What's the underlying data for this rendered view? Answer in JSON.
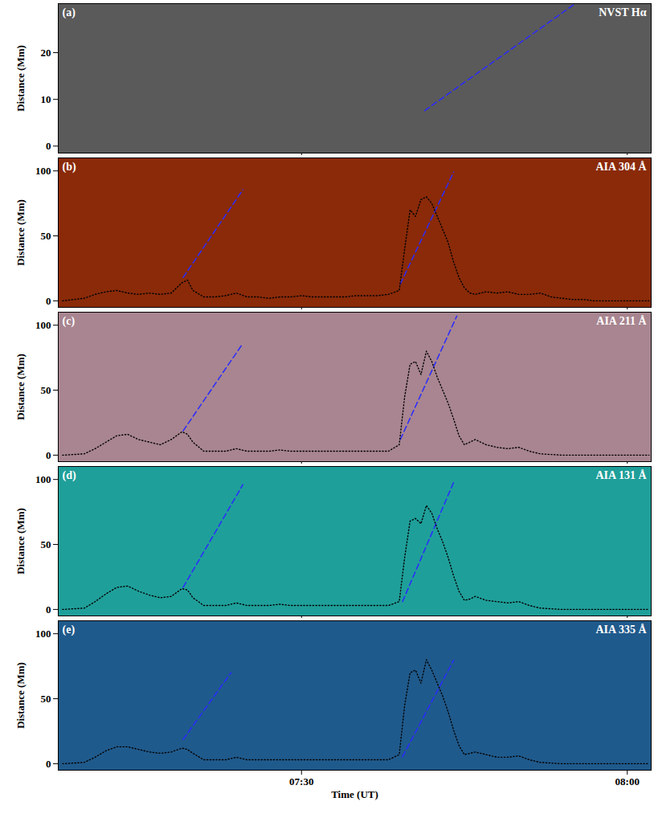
{
  "chart_data": [
    {
      "type": "line",
      "label": "(a)",
      "title": "NVST Hα",
      "color": "#5a5a5a",
      "xlim": [
        7.6,
        62.2
      ],
      "xticks": [
        {
          "value": 30,
          "label": "07:30"
        },
        {
          "value": 60,
          "label": "08:00"
        }
      ],
      "ylim": [
        -1.5,
        30.5
      ],
      "yticks": [
        0,
        10,
        20
      ],
      "ylabel": "Distance (Mm)",
      "tick_labels": "y",
      "series": [
        {
          "color": "#2a2aff",
          "line_style": "dashed",
          "x": [
            41.35,
            55.2
          ],
          "values": [
            7.6,
            30.5
          ]
        }
      ]
    },
    {
      "type": "line",
      "label": "(b)",
      "title": "AIA 304 Å",
      "color": "#8a2a08",
      "xlim": [
        7.6,
        62.2
      ],
      "xticks": [
        {
          "value": 30,
          "label": "07:30"
        },
        {
          "value": 60,
          "label": "08:00"
        }
      ],
      "ylim": [
        -5,
        110
      ],
      "yticks": [
        0,
        50,
        100
      ],
      "ylabel": "Distance (Mm)",
      "tick_labels": "y",
      "series": [
        {
          "color": "#2a2aff",
          "line_style": "dashed",
          "x": [
            19.1,
            24.6
          ],
          "values": [
            18,
            85.5
          ]
        },
        {
          "color": "#2a2aff",
          "line_style": "dashed",
          "x": [
            39.1,
            44.0
          ],
          "values": [
            13,
            99
          ]
        },
        {
          "color": "#000000",
          "line_style": "dotted",
          "x": [
            8,
            9,
            10,
            11,
            12,
            13,
            14,
            15,
            16,
            17,
            18,
            19,
            19.5,
            20,
            21,
            22,
            23,
            24,
            25,
            26,
            27,
            28,
            29,
            30,
            31,
            32,
            33,
            34,
            35,
            36,
            37,
            38,
            39,
            39.5,
            40,
            40.5,
            41,
            41.5,
            42,
            42.5,
            43,
            43.5,
            44,
            44.5,
            45,
            45.5,
            46,
            47,
            48,
            49,
            50,
            51,
            52,
            53,
            54,
            55,
            56,
            57,
            58,
            60,
            62
          ],
          "values": [
            0,
            1,
            2,
            5,
            7,
            8,
            6,
            5,
            6,
            5,
            6,
            14,
            16,
            8,
            3,
            3,
            4,
            6,
            3,
            3,
            2,
            3,
            3,
            4,
            3,
            3,
            3,
            3,
            4,
            4,
            4,
            5,
            8,
            40,
            70,
            65,
            78,
            80,
            75,
            65,
            55,
            45,
            30,
            18,
            10,
            6,
            5,
            7,
            6,
            7,
            5,
            5,
            6,
            3,
            2,
            1,
            1,
            0,
            0,
            0,
            0
          ]
        }
      ]
    },
    {
      "type": "line",
      "label": "(c)",
      "title": "AIA 211 Å",
      "color": "#a88590",
      "xlim": [
        7.6,
        62.2
      ],
      "xticks": [
        {
          "value": 30,
          "label": "07:30"
        },
        {
          "value": 60,
          "label": "08:00"
        }
      ],
      "ylim": [
        -5,
        110
      ],
      "yticks": [
        0,
        50,
        100
      ],
      "ylabel": "Distance (Mm)",
      "tick_labels": "y",
      "series": [
        {
          "color": "#2a2aff",
          "line_style": "dashed",
          "x": [
            19.1,
            24.6
          ],
          "values": [
            18.7,
            86
          ]
        },
        {
          "color": "#2a2aff",
          "line_style": "dashed",
          "x": [
            39.1,
            44.3
          ],
          "values": [
            12,
            107
          ]
        },
        {
          "color": "#000000",
          "line_style": "dotted",
          "x": [
            8,
            10,
            11,
            12,
            13,
            14,
            15,
            16,
            17,
            18,
            19,
            19.5,
            20,
            21,
            22,
            23,
            24,
            25,
            26,
            27,
            28,
            29,
            30,
            32,
            34,
            36,
            38,
            39,
            39.5,
            40,
            40.5,
            41,
            41.5,
            42,
            42.5,
            43,
            43.5,
            44,
            44.5,
            45,
            45.5,
            46,
            47,
            48,
            49,
            50,
            51,
            52,
            54,
            58,
            62
          ],
          "values": [
            0,
            1,
            5,
            10,
            15,
            16,
            12,
            10,
            8,
            12,
            18,
            16,
            10,
            3,
            3,
            3,
            5,
            3,
            3,
            3,
            4,
            3,
            3,
            3,
            3,
            3,
            3,
            8,
            45,
            70,
            72,
            62,
            80,
            72,
            60,
            50,
            40,
            28,
            15,
            8,
            10,
            12,
            8,
            6,
            5,
            6,
            3,
            1,
            0,
            0,
            0
          ]
        }
      ]
    },
    {
      "type": "line",
      "label": "(d)",
      "title": "AIA 131 Å",
      "color": "#1f9f9a",
      "xlim": [
        7.6,
        62.2
      ],
      "xticks": [
        {
          "value": 30,
          "label": "07:30"
        },
        {
          "value": 60,
          "label": "08:00"
        }
      ],
      "ylim": [
        -5,
        110
      ],
      "yticks": [
        0,
        50,
        100
      ],
      "ylabel": "Distance (Mm)",
      "tick_labels": "y",
      "series": [
        {
          "color": "#2a2aff",
          "line_style": "dashed",
          "x": [
            19.1,
            24.6
          ],
          "values": [
            17,
            96
          ]
        },
        {
          "color": "#2a2aff",
          "line_style": "dashed",
          "x": [
            39.3,
            44.0
          ],
          "values": [
            6,
            97.6
          ]
        },
        {
          "color": "#000000",
          "line_style": "dotted",
          "x": [
            8,
            10,
            11,
            12,
            13,
            14,
            15,
            16,
            17,
            18,
            19,
            19.5,
            20,
            21,
            22,
            23,
            24,
            25,
            26,
            27,
            28,
            29,
            30,
            32,
            34,
            36,
            38,
            39,
            39.5,
            40,
            40.5,
            41,
            41.5,
            42,
            42.5,
            43,
            43.5,
            44,
            44.5,
            45,
            45.5,
            46,
            47,
            48,
            49,
            50,
            51,
            52,
            54,
            58,
            62
          ],
          "values": [
            0,
            1,
            6,
            12,
            17,
            18,
            14,
            11,
            9,
            10,
            16,
            15,
            9,
            3,
            3,
            3,
            5,
            3,
            3,
            3,
            4,
            3,
            3,
            3,
            3,
            3,
            3,
            6,
            40,
            68,
            70,
            66,
            80,
            74,
            62,
            52,
            40,
            26,
            14,
            7,
            8,
            10,
            7,
            6,
            5,
            6,
            3,
            1,
            0,
            0,
            0
          ]
        }
      ]
    },
    {
      "type": "line",
      "label": "(e)",
      "title": "AIA 335 Å",
      "color": "#1f5a8c",
      "xlim": [
        7.6,
        62.2
      ],
      "xticks": [
        {
          "value": 30,
          "label": "07:30"
        },
        {
          "value": 60,
          "label": "08:00"
        }
      ],
      "ylim": [
        -5,
        110
      ],
      "yticks": [
        0,
        50,
        100
      ],
      "xlabel": "Time (UT)",
      "ylabel": "Distance (Mm)",
      "series": [
        {
          "color": "#2a2aff",
          "line_style": "dashed",
          "x": [
            19.1,
            23.5
          ],
          "values": [
            18.7,
            70
          ]
        },
        {
          "color": "#2a2aff",
          "line_style": "dashed",
          "x": [
            39.3,
            44.0
          ],
          "values": [
            5.4,
            79.5
          ]
        },
        {
          "color": "#000000",
          "line_style": "dotted",
          "x": [
            8,
            10,
            11,
            12,
            13,
            14,
            15,
            16,
            17,
            18,
            19,
            19.5,
            20,
            21,
            22,
            23,
            24,
            25,
            26,
            27,
            28,
            29,
            30,
            32,
            34,
            36,
            38,
            39,
            39.5,
            40,
            40.5,
            41,
            41.5,
            42,
            42.5,
            43,
            43.5,
            44,
            44.5,
            45,
            45.5,
            46,
            47,
            48,
            49,
            50,
            51,
            52,
            54,
            58,
            62
          ],
          "values": [
            0,
            1,
            5,
            10,
            13,
            13,
            11,
            9,
            8,
            9,
            12,
            11,
            8,
            3,
            3,
            3,
            5,
            3,
            3,
            3,
            3,
            3,
            3,
            3,
            3,
            3,
            3,
            7,
            45,
            70,
            72,
            62,
            80,
            72,
            62,
            52,
            40,
            26,
            14,
            7,
            8,
            9,
            7,
            5,
            5,
            6,
            3,
            1,
            0,
            0,
            0
          ]
        }
      ]
    }
  ]
}
